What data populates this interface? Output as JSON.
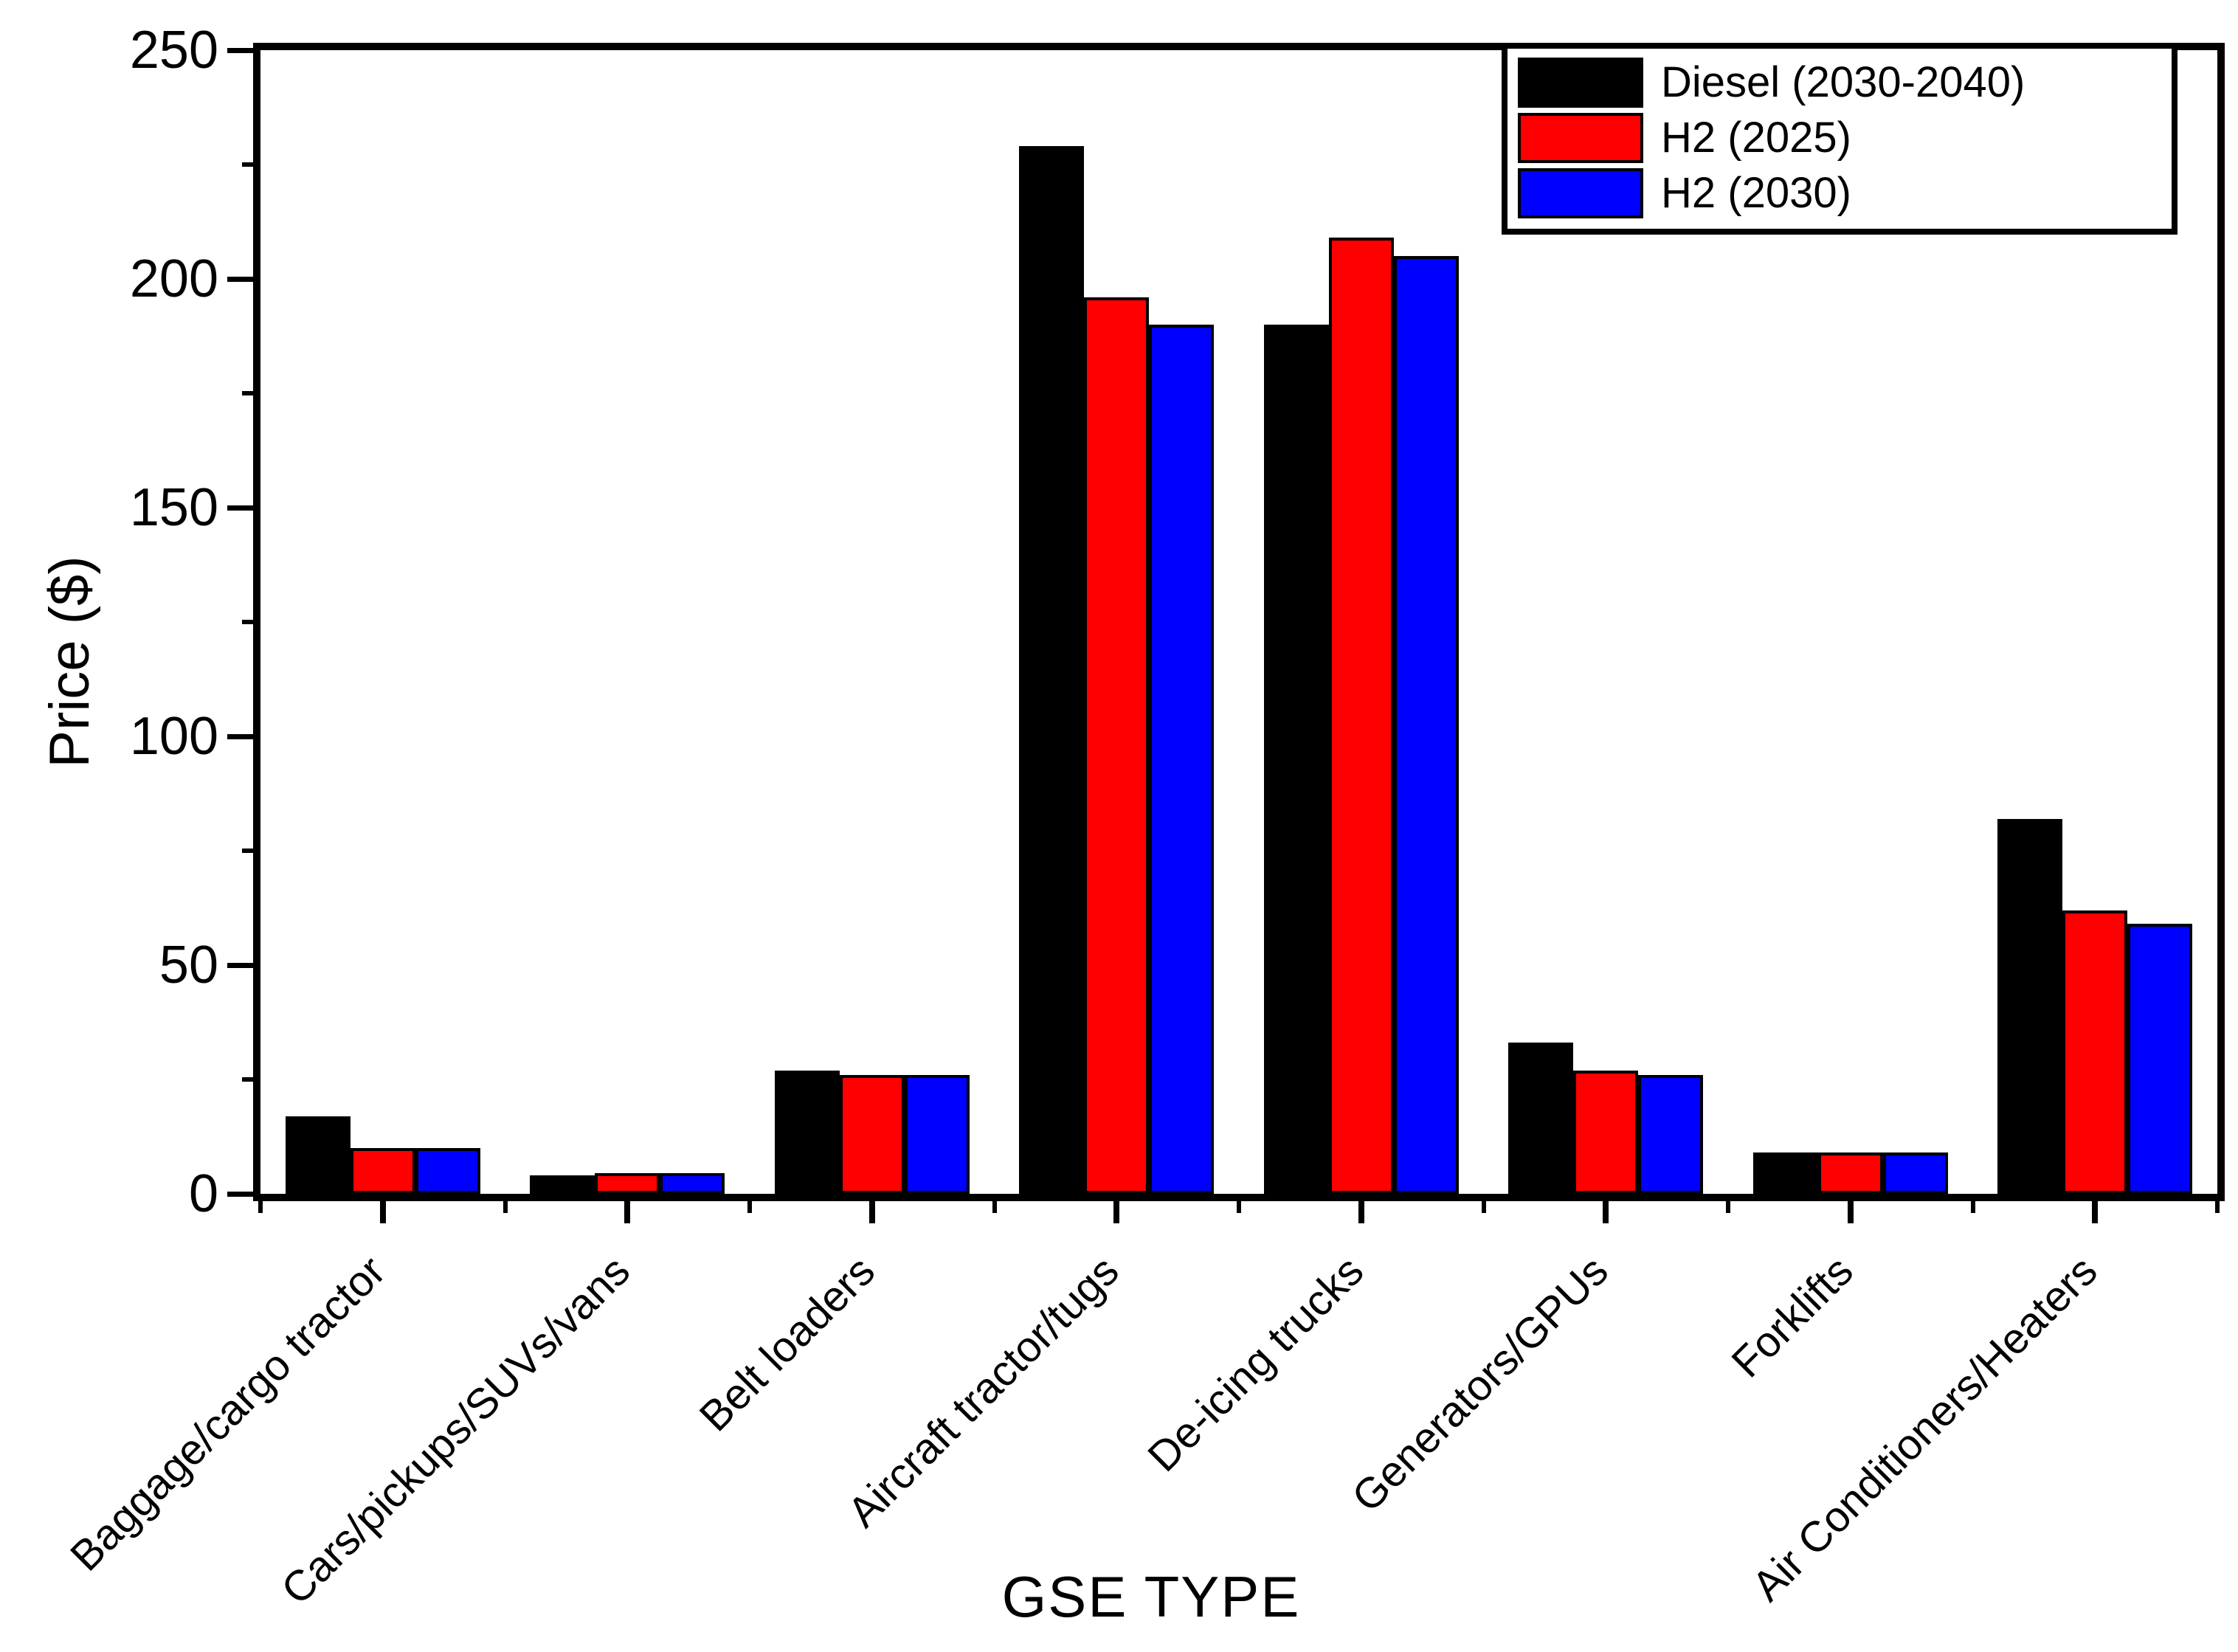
{
  "chart_data": {
    "type": "bar",
    "title": "",
    "xlabel": "GSE TYPE",
    "ylabel": "Price ($)",
    "ylim": [
      0,
      250
    ],
    "yticks_major": [
      0,
      50,
      100,
      150,
      200,
      250
    ],
    "yticks_minor": [
      25,
      75,
      125,
      175,
      225
    ],
    "grid": false,
    "legend_position": "top-right-inside",
    "categories": [
      "Baggage/cargo tractor",
      "Cars/pickups/SUVs/vans",
      "Belt loaders",
      "Aircraft tractor/tugs",
      "De-icing trucks",
      "Generators/GPUs",
      "Forklifts",
      "Air Conditioners/Heaters"
    ],
    "series": [
      {
        "name": "Diesel (2030-2040)",
        "color": "#000000",
        "values": [
          17,
          4,
          27,
          229,
          190,
          33,
          9,
          82
        ]
      },
      {
        "name": "H2 (2025)",
        "color": "#ff0000",
        "values": [
          10,
          4.5,
          26,
          196,
          209,
          27,
          9,
          62
        ]
      },
      {
        "name": "H2 (2030)",
        "color": "#0000ff",
        "values": [
          10,
          4.5,
          26,
          190,
          205,
          26,
          9,
          59
        ]
      }
    ]
  },
  "colors": {
    "axis": "#000000",
    "background": "#ffffff",
    "bar_border": "#000000"
  }
}
